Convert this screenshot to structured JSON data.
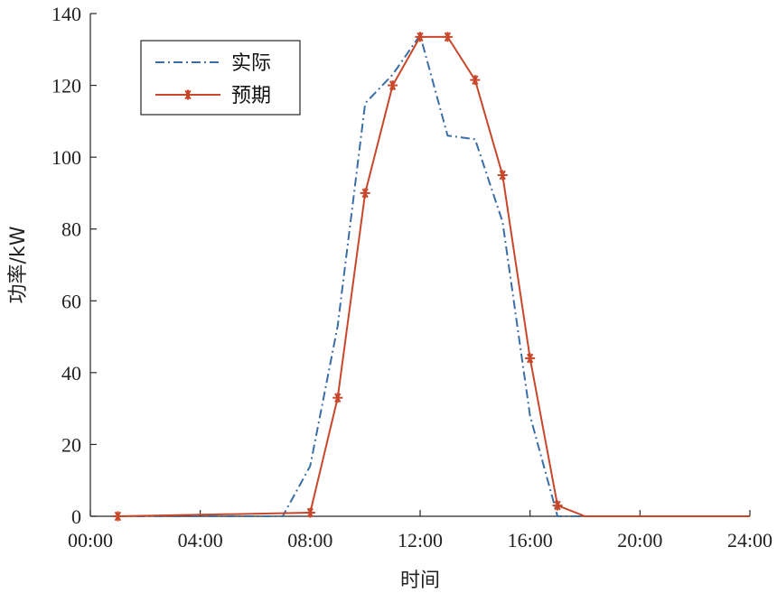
{
  "chart_data": {
    "type": "line",
    "xlabel": "时间",
    "ylabel": "功率/kW",
    "xlim": [
      0,
      24
    ],
    "ylim": [
      0,
      140
    ],
    "x_ticks": [
      0,
      4,
      8,
      12,
      16,
      20,
      24
    ],
    "x_tick_labels": [
      "00:00",
      "04:00",
      "08:00",
      "12:00",
      "16:00",
      "20:00",
      "24:00"
    ],
    "y_ticks": [
      0,
      20,
      40,
      60,
      80,
      100,
      120,
      140
    ],
    "y_tick_labels": [
      "0",
      "20",
      "40",
      "60",
      "80",
      "100",
      "120",
      "140"
    ],
    "grid": false,
    "legend_position": "top-left",
    "series": [
      {
        "name": "实际",
        "color": "#3a6ea5",
        "line_style": "dash-dot",
        "marker": "none",
        "x": [
          1,
          2,
          3,
          4,
          5,
          6,
          7,
          8,
          9,
          10,
          11,
          12,
          13,
          14,
          15,
          16,
          17,
          18,
          19,
          20,
          21,
          22,
          23,
          24
        ],
        "y": [
          0,
          0,
          0,
          0,
          0,
          0,
          0,
          14,
          53,
          115,
          123,
          134,
          106,
          105,
          82,
          28,
          0,
          0,
          0,
          0,
          0,
          0,
          0,
          0
        ]
      },
      {
        "name": "预期",
        "color": "#c8472a",
        "line_style": "solid",
        "marker": "asterisk",
        "x": [
          1,
          8,
          9,
          10,
          11,
          12,
          13,
          14,
          15,
          16,
          17,
          18,
          24
        ],
        "y": [
          0,
          1,
          33,
          90,
          120,
          133.5,
          133.5,
          121.5,
          95,
          44,
          3,
          0,
          0
        ],
        "marker_x": [
          1,
          8,
          9,
          10,
          11,
          12,
          13,
          14,
          15,
          16,
          17
        ],
        "marker_y": [
          0,
          1,
          33,
          90,
          120,
          133.5,
          133.5,
          121.5,
          95,
          44,
          3
        ]
      }
    ]
  }
}
